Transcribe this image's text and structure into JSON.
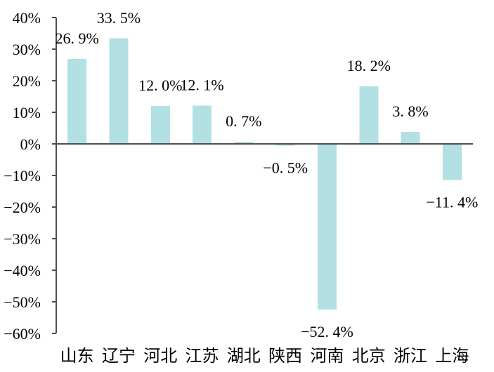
{
  "chart_data": {
    "type": "bar",
    "categories": [
      "山东",
      "辽宁",
      "河北",
      "江苏",
      "湖北",
      "陕西",
      "河南",
      "北京",
      "浙江",
      "上海"
    ],
    "values": [
      26.9,
      33.5,
      12.0,
      12.1,
      0.7,
      -0.5,
      -52.4,
      18.2,
      3.8,
      -11.4
    ],
    "data_labels": [
      "26. 9%",
      "33. 5%",
      "12. 0%",
      "12. 1%",
      "0. 7%",
      "−0. 5%",
      "−52. 4%",
      "18. 2%",
      "3. 8%",
      "−11. 4%"
    ],
    "y_ticks": [
      {
        "value": 40,
        "label": "40%"
      },
      {
        "value": 30,
        "label": "30%"
      },
      {
        "value": 20,
        "label": "20%"
      },
      {
        "value": 10,
        "label": "10%"
      },
      {
        "value": 0,
        "label": "0%"
      },
      {
        "value": -10,
        "label": "−10%"
      },
      {
        "value": -20,
        "label": "−20%"
      },
      {
        "value": -30,
        "label": "−30%"
      },
      {
        "value": -40,
        "label": "−40%"
      },
      {
        "value": -50,
        "label": "−50%"
      },
      {
        "value": -60,
        "label": "−60%"
      }
    ],
    "ylim": [
      -60,
      40
    ],
    "grid": false,
    "legend": false,
    "bar_color": "#b3e0e2",
    "axis_color": "#4f4f4f",
    "text_color": "#000000"
  }
}
